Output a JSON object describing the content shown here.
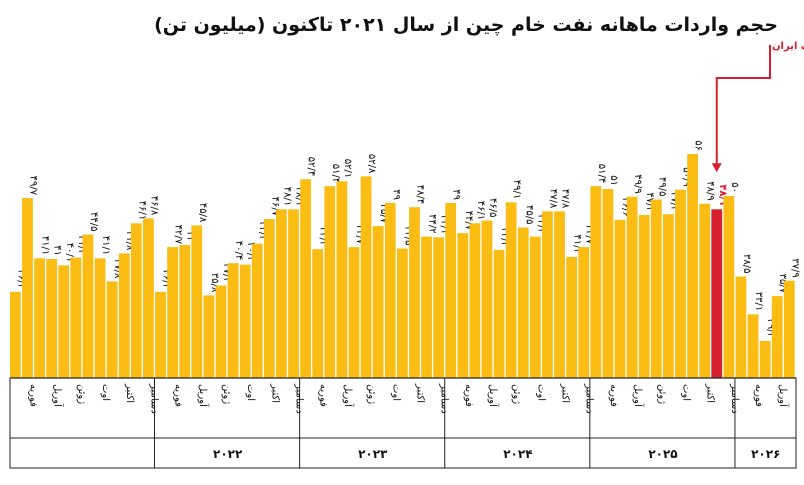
{
  "chart_data": {
    "type": "bar",
    "title": "حجم واردات ماهانه نفت خام چین از سال ۲۰۲۱ تاکنون (میلیون تن)",
    "unit": "میلیون تن",
    "series": [
      {
        "values": [
          "۳۶/۳",
          "۴۹/۷",
          "۴۱/۱",
          "۴۱",
          "۴۰/۱",
          "۴۱/۲",
          "۴۴/۵",
          "۴۱/۱",
          "۳۷/۸",
          "۴۱/۸",
          "۴۶/۱",
          "۴۶/۸",
          "۳۶/۳",
          "۴۲/۷",
          "۴۳",
          "۴۵/۸",
          "۳۵/۸",
          "۳۷/۲",
          "۴۰/۴",
          "۴۰/۲",
          "۴۳/۲",
          "۴۶/۷",
          "۴۸/۱",
          "۴۸/۱",
          "۵۲/۴",
          "۴۲/۴",
          "۵۱/۴",
          "۵۲/۱",
          "۴۲/۷",
          "۵۲/۸",
          "۴۵/۷",
          "۴۹",
          "۴۲/۵",
          "۴۸/۴",
          "۴۴/۲",
          "۴۴/۱",
          "۴۹",
          "۴۴/۷",
          "۴۶/۱",
          "۴۶/۵",
          "۴۲/۳",
          "۴۹/۱",
          "۴۵/۵",
          "۴۴/۲",
          "۴۷/۸",
          "۴۷/۸",
          "۴۱/۳",
          "۴۲/۷",
          "۵۱/۴",
          "۵۱",
          "۴۶/۶",
          "۴۹/۹",
          "۴۷/۳",
          "۴۹/۵",
          "۴۷/۴",
          "۵۰/۹",
          "۵۶",
          "۴۸/۹",
          "۴۸/۱",
          "۵۰",
          "۳۸/۵",
          "۳۳/۱",
          "۲۹/۳",
          "۳۵/۷",
          "۳۷/۹"
        ],
        "numeric": [
          36.3,
          49.7,
          41.1,
          41,
          40.1,
          41.2,
          44.5,
          41.1,
          37.8,
          41.8,
          46.1,
          46.8,
          36.3,
          42.7,
          43,
          45.8,
          35.8,
          37.2,
          40.4,
          40.2,
          43.2,
          46.7,
          48.1,
          48.1,
          52.4,
          42.4,
          51.4,
          52.1,
          42.7,
          52.8,
          45.7,
          49,
          42.5,
          48.4,
          44.2,
          44.1,
          49,
          44.7,
          46.1,
          46.5,
          42.3,
          49.1,
          45.5,
          44.2,
          47.8,
          47.8,
          41.3,
          42.7,
          51.4,
          51,
          46.6,
          49.9,
          47.3,
          49.5,
          47.4,
          50.9,
          56,
          48.9,
          48.1,
          50,
          38.5,
          33.1,
          29.3,
          35.7,
          37.9
        ]
      }
    ],
    "highlight_index": 58,
    "highlight_color": "#d6202e",
    "bar_color": "#fbbc13",
    "annotation": {
      "label": "شروع جنگ ایران"
    },
    "month_labels": [
      "فوریه",
      "آوریل",
      "ژوئن",
      "اوت",
      "اکتبر",
      "دسامبر",
      "فوریه",
      "آوریل",
      "ژوئن",
      "اوت",
      "اکتبر",
      "دسامبر",
      "فوریه",
      "آوریل",
      "ژوئن",
      "اوت",
      "اکتبر",
      "دسامبر",
      "فوریه",
      "آوریل",
      "ژوئن",
      "اوت",
      "اکتبر",
      "دسامبر",
      "فوریه",
      "آوریل",
      "ژوئن",
      "اوت",
      "اکتبر",
      "دسامبر",
      "فوریه",
      "آوریل",
      "ژوئن",
      "اوت"
    ],
    "years": [
      "۲۰۲۲",
      "۲۰۲۳",
      "۲۰۲۴",
      "۲۰۲۵",
      "۲۰۲۶"
    ]
  }
}
